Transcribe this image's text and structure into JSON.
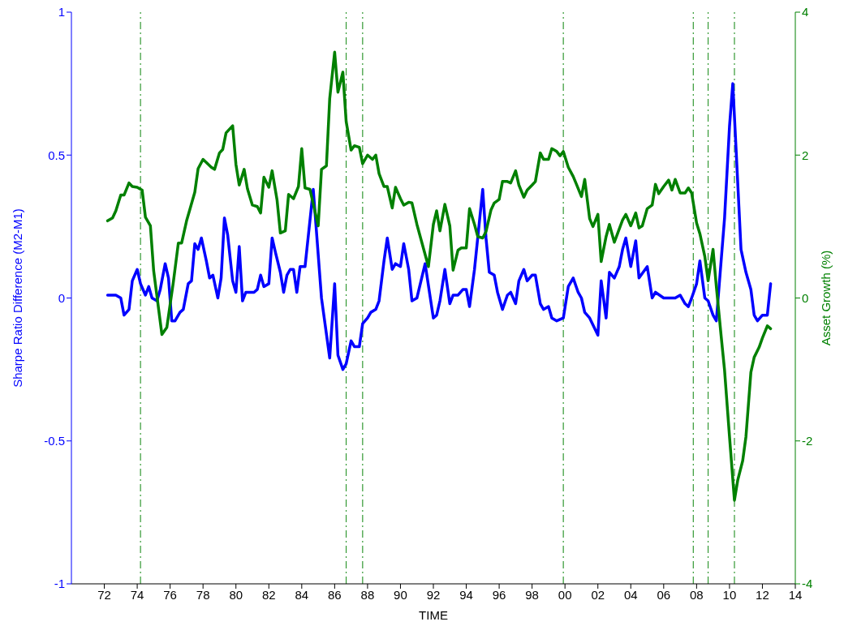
{
  "chart_data": {
    "type": "line",
    "xlabel": "TIME",
    "ylabel": "Sharpe Ratio Difference (M2-M1)",
    "y2label": "Asset Growth (%)",
    "xlim": [
      1970,
      2014
    ],
    "xticks": [
      {
        "value": 1972,
        "label": "72"
      },
      {
        "value": 1974,
        "label": "74"
      },
      {
        "value": 1976,
        "label": "76"
      },
      {
        "value": 1978,
        "label": "78"
      },
      {
        "value": 1980,
        "label": "80"
      },
      {
        "value": 1982,
        "label": "82"
      },
      {
        "value": 1984,
        "label": "84"
      },
      {
        "value": 1986,
        "label": "86"
      },
      {
        "value": 1988,
        "label": "88"
      },
      {
        "value": 1990,
        "label": "90"
      },
      {
        "value": 1992,
        "label": "92"
      },
      {
        "value": 1994,
        "label": "94"
      },
      {
        "value": 1996,
        "label": "96"
      },
      {
        "value": 1998,
        "label": "98"
      },
      {
        "value": 2000,
        "label": "00"
      },
      {
        "value": 2002,
        "label": "02"
      },
      {
        "value": 2004,
        "label": "04"
      },
      {
        "value": 2006,
        "label": "06"
      },
      {
        "value": 2008,
        "label": "08"
      },
      {
        "value": 2010,
        "label": "10"
      },
      {
        "value": 2012,
        "label": "12"
      },
      {
        "value": 2014,
        "label": "14"
      }
    ],
    "ylim": [
      -1,
      1
    ],
    "yticks": [
      -1,
      -0.5,
      0,
      0.5,
      1
    ],
    "y2lim": [
      -4,
      4
    ],
    "y2ticks": [
      -4,
      -2,
      0,
      2,
      4
    ],
    "grid": false,
    "legend": false,
    "marker": "none",
    "line_style": "solid",
    "series": [
      {
        "color": "#0000ff",
        "x": [
          1972.2,
          1972.7,
          1973.0,
          1973.2,
          1973.5,
          1973.7,
          1974.0,
          1974.2,
          1974.5,
          1974.7,
          1974.9,
          1975.2,
          1975.4,
          1975.7,
          1975.9,
          1976.1,
          1976.3,
          1976.6,
          1976.8,
          1977.1,
          1977.3,
          1977.5,
          1977.7,
          1977.9,
          1978.2,
          1978.4,
          1978.6,
          1978.9,
          1979.1,
          1979.3,
          1979.5,
          1979.8,
          1980.0,
          1980.2,
          1980.4,
          1980.6,
          1980.9,
          1981.1,
          1981.3,
          1981.5,
          1981.7,
          1982.0,
          1982.2,
          1982.4,
          1982.7,
          1982.9,
          1983.1,
          1983.3,
          1983.5,
          1983.7,
          1983.9,
          1984.2,
          1984.7,
          1985.2,
          1985.7,
          1986.0,
          1986.2,
          1986.5,
          1986.7,
          1987.0,
          1987.2,
          1987.5,
          1987.7,
          1988.0,
          1988.2,
          1988.5,
          1988.7,
          1989.0,
          1989.2,
          1989.5,
          1989.7,
          1990.0,
          1990.2,
          1990.5,
          1990.7,
          1991.0,
          1991.5,
          1992.0,
          1992.2,
          1992.4,
          1992.7,
          1993.0,
          1993.2,
          1993.5,
          1993.8,
          1994.0,
          1994.2,
          1994.5,
          1995.0,
          1995.2,
          1995.4,
          1995.7,
          1995.9,
          1996.2,
          1996.5,
          1996.7,
          1997.0,
          1997.2,
          1997.5,
          1997.7,
          1998.0,
          1998.2,
          1998.5,
          1998.7,
          1999.0,
          1999.2,
          1999.5,
          1999.9,
          2000.2,
          2000.5,
          2000.8,
          2001.0,
          2001.2,
          2001.5,
          2002.0,
          2002.2,
          2002.5,
          2002.7,
          2003.0,
          2003.3,
          2003.5,
          2003.7,
          2004.0,
          2004.3,
          2004.5,
          2005.0,
          2005.3,
          2005.5,
          2006.0,
          2006.3,
          2006.7,
          2007.0,
          2007.3,
          2007.5,
          2007.7,
          2008.0,
          2008.2,
          2008.5,
          2008.7,
          2009.0,
          2009.2,
          2009.7,
          2010.0,
          2010.2,
          2010.4,
          2010.7,
          2011.0,
          2011.3,
          2011.5,
          2011.7,
          2012.0,
          2012.3,
          2012.5
        ],
        "values": [
          0.01,
          0.01,
          0.0,
          -0.06,
          -0.04,
          0.06,
          0.1,
          0.05,
          0.01,
          0.04,
          0.0,
          -0.01,
          0.03,
          0.12,
          0.07,
          -0.08,
          -0.08,
          -0.05,
          -0.04,
          0.05,
          0.06,
          0.19,
          0.17,
          0.21,
          0.13,
          0.07,
          0.08,
          0.0,
          0.07,
          0.28,
          0.22,
          0.06,
          0.02,
          0.18,
          -0.01,
          0.02,
          0.02,
          0.02,
          0.03,
          0.08,
          0.04,
          0.05,
          0.21,
          0.16,
          0.09,
          0.02,
          0.08,
          0.1,
          0.1,
          0.02,
          0.11,
          0.11,
          0.38,
          0.0,
          -0.21,
          0.05,
          -0.2,
          -0.25,
          -0.23,
          -0.15,
          -0.17,
          -0.17,
          -0.09,
          -0.07,
          -0.05,
          -0.04,
          -0.01,
          0.13,
          0.21,
          0.1,
          0.12,
          0.11,
          0.19,
          0.1,
          -0.01,
          0.0,
          0.12,
          -0.07,
          -0.06,
          -0.01,
          0.1,
          -0.02,
          0.01,
          0.01,
          0.03,
          0.03,
          -0.03,
          0.1,
          0.38,
          0.21,
          0.09,
          0.08,
          0.02,
          -0.04,
          0.01,
          0.02,
          -0.02,
          0.06,
          0.1,
          0.06,
          0.08,
          0.08,
          -0.02,
          -0.04,
          -0.03,
          -0.07,
          -0.08,
          -0.07,
          0.04,
          0.07,
          0.02,
          0.0,
          -0.05,
          -0.07,
          -0.13,
          0.06,
          -0.07,
          0.09,
          0.07,
          0.11,
          0.17,
          0.21,
          0.11,
          0.2,
          0.07,
          0.11,
          0.0,
          0.02,
          0.0,
          0.0,
          0.0,
          0.01,
          -0.02,
          -0.03,
          0.0,
          0.05,
          0.13,
          0.0,
          -0.01,
          -0.06,
          -0.08,
          0.28,
          0.6,
          0.75,
          0.52,
          0.17,
          0.09,
          0.03,
          -0.06,
          -0.08,
          -0.06,
          -0.06,
          0.05
        ]
      },
      {
        "color": "#008000",
        "axis": "y2",
        "x": [
          1972.2,
          1972.5,
          1972.7,
          1973.0,
          1973.2,
          1973.5,
          1973.7,
          1974.0,
          1974.3,
          1974.5,
          1974.8,
          1975.0,
          1975.5,
          1975.8,
          1976.2,
          1976.5,
          1976.7,
          1977.0,
          1977.2,
          1977.5,
          1977.7,
          1978.0,
          1978.5,
          1978.7,
          1979.0,
          1979.2,
          1979.4,
          1979.8,
          1980.0,
          1980.2,
          1980.5,
          1980.7,
          1981.0,
          1981.3,
          1981.5,
          1981.7,
          1982.0,
          1982.2,
          1982.5,
          1982.7,
          1983.0,
          1983.2,
          1983.5,
          1983.8,
          1984.0,
          1984.2,
          1984.5,
          1985.0,
          1985.2,
          1985.5,
          1985.7,
          1986.0,
          1986.2,
          1986.5,
          1986.7,
          1987.0,
          1987.2,
          1987.5,
          1987.7,
          1988.0,
          1988.3,
          1988.5,
          1988.7,
          1989.0,
          1989.2,
          1989.5,
          1989.7,
          1990.0,
          1990.2,
          1990.5,
          1990.7,
          1991.0,
          1991.7,
          1992.0,
          1992.2,
          1992.4,
          1992.7,
          1993.0,
          1993.2,
          1993.5,
          1993.7,
          1994.0,
          1994.2,
          1994.5,
          1994.7,
          1995.0,
          1995.2,
          1995.5,
          1995.7,
          1996.0,
          1996.2,
          1996.5,
          1996.7,
          1997.0,
          1997.2,
          1997.5,
          1997.7,
          1998.0,
          1998.2,
          1998.5,
          1998.7,
          1999.0,
          1999.2,
          1999.5,
          1999.7,
          1999.9,
          2000.2,
          2000.5,
          2000.7,
          2001.0,
          2001.2,
          2001.5,
          2001.7,
          2002.0,
          2002.2,
          2002.5,
          2002.7,
          2003.0,
          2003.5,
          2003.7,
          2004.0,
          2004.3,
          2004.5,
          2004.7,
          2005.0,
          2005.3,
          2005.5,
          2005.7,
          2006.0,
          2006.3,
          2006.5,
          2006.7,
          2007.0,
          2007.3,
          2007.5,
          2007.7,
          2008.0,
          2008.2,
          2008.5,
          2008.7,
          2009.0,
          2009.2,
          2009.5,
          2009.7,
          2010.0,
          2010.3,
          2010.5,
          2010.8,
          2011.0,
          2011.3,
          2011.5,
          2011.8,
          2012.0,
          2012.3,
          2012.5
        ],
        "values": [
          1.08,
          1.12,
          1.22,
          1.44,
          1.44,
          1.61,
          1.56,
          1.55,
          1.51,
          1.13,
          1.01,
          0.38,
          -0.51,
          -0.41,
          0.23,
          0.77,
          0.77,
          1.08,
          1.24,
          1.48,
          1.81,
          1.94,
          1.83,
          1.8,
          2.03,
          2.08,
          2.31,
          2.41,
          1.87,
          1.58,
          1.8,
          1.53,
          1.3,
          1.28,
          1.19,
          1.69,
          1.55,
          1.78,
          1.37,
          0.91,
          0.94,
          1.45,
          1.39,
          1.56,
          2.09,
          1.54,
          1.52,
          1.01,
          1.8,
          1.85,
          2.79,
          3.44,
          2.88,
          3.16,
          2.47,
          2.07,
          2.13,
          2.11,
          1.88,
          2.0,
          1.94,
          2.0,
          1.74,
          1.56,
          1.56,
          1.26,
          1.55,
          1.39,
          1.3,
          1.34,
          1.33,
          1.03,
          0.44,
          1.03,
          1.22,
          0.94,
          1.31,
          1.01,
          0.39,
          0.67,
          0.7,
          0.7,
          1.25,
          1.03,
          0.86,
          0.84,
          0.93,
          1.23,
          1.33,
          1.38,
          1.63,
          1.63,
          1.61,
          1.78,
          1.58,
          1.41,
          1.51,
          1.58,
          1.63,
          2.03,
          1.94,
          1.94,
          2.09,
          2.05,
          1.99,
          2.05,
          1.83,
          1.7,
          1.59,
          1.42,
          1.66,
          1.11,
          1.0,
          1.17,
          0.51,
          0.86,
          1.03,
          0.78,
          1.09,
          1.17,
          1.01,
          1.19,
          0.98,
          1.01,
          1.25,
          1.3,
          1.59,
          1.46,
          1.56,
          1.65,
          1.51,
          1.66,
          1.47,
          1.47,
          1.54,
          1.47,
          1.05,
          0.9,
          0.58,
          0.24,
          0.68,
          0.16,
          -0.55,
          -1.01,
          -1.94,
          -2.83,
          -2.55,
          -2.28,
          -1.94,
          -1.04,
          -0.83,
          -0.69,
          -0.56,
          -0.39,
          -0.43
        ]
      }
    ],
    "ref_lines": [
      {
        "axis": "x",
        "value": 1974.2,
        "color": "#339933",
        "line_style": "dashed"
      },
      {
        "axis": "x",
        "value": 1986.7,
        "color": "#339933",
        "line_style": "dashed"
      },
      {
        "axis": "x",
        "value": 1987.7,
        "color": "#339933",
        "line_style": "dashed"
      },
      {
        "axis": "x",
        "value": 1999.9,
        "color": "#339933",
        "line_style": "dashed"
      },
      {
        "axis": "x",
        "value": 2007.8,
        "color": "#339933",
        "line_style": "dashed"
      },
      {
        "axis": "x",
        "value": 2008.7,
        "color": "#339933",
        "line_style": "dashed"
      },
      {
        "axis": "x",
        "value": 2010.3,
        "color": "#339933",
        "line_style": "dashed"
      }
    ]
  }
}
